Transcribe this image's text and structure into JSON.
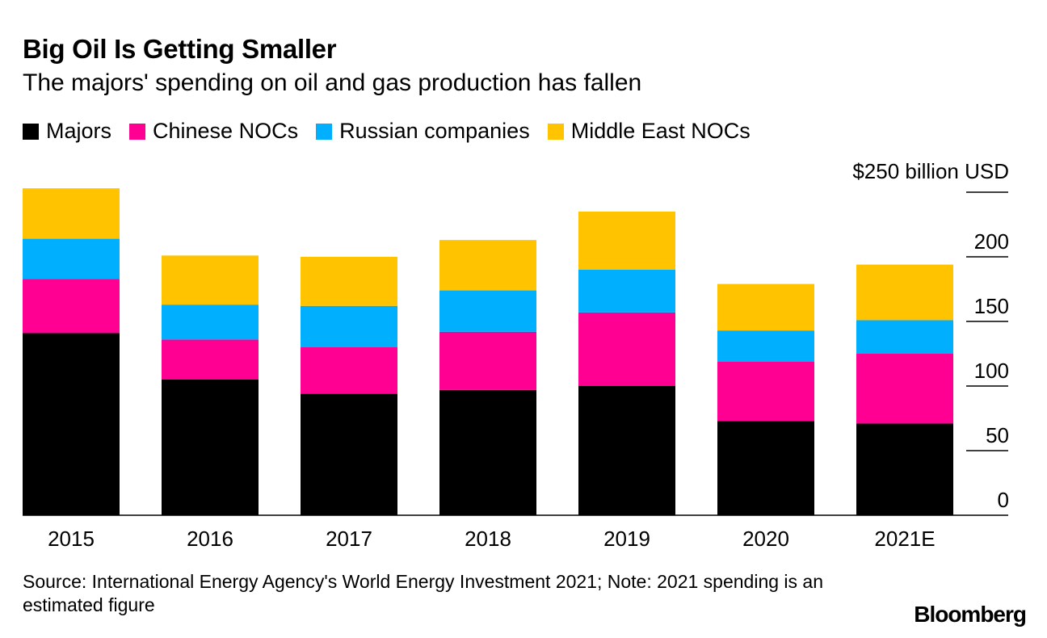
{
  "title": "Big Oil Is Getting Smaller",
  "subtitle": "The majors' spending on oil and gas production has fallen",
  "legend": [
    {
      "label": "Majors",
      "color": "#000000"
    },
    {
      "label": "Chinese NOCs",
      "color": "#ff0093"
    },
    {
      "label": "Russian companies",
      "color": "#00b0ff"
    },
    {
      "label": "Middle East NOCs",
      "color": "#ffc300"
    }
  ],
  "source": "Source: International Energy Agency's World Energy Investment 2021; Note: 2021 spending is an estimated figure",
  "logo": "Bloomberg",
  "chart_data": {
    "type": "bar",
    "stacked": true,
    "categories": [
      "2015",
      "2016",
      "2017",
      "2018",
      "2019",
      "2020",
      "2021E"
    ],
    "series": [
      {
        "name": "Majors",
        "color": "#000000",
        "values": [
          141,
          105,
          94,
          97,
          100,
          73,
          71
        ]
      },
      {
        "name": "Chinese NOCs",
        "color": "#ff0093",
        "values": [
          42,
          31,
          36,
          45,
          57,
          46,
          54
        ]
      },
      {
        "name": "Russian companies",
        "color": "#00b0ff",
        "values": [
          31,
          27,
          32,
          32,
          33,
          24,
          26
        ]
      },
      {
        "name": "Middle East NOCs",
        "color": "#ffc300",
        "values": [
          39,
          38,
          38,
          39,
          45,
          36,
          43
        ]
      }
    ],
    "y_unit_label": "$250 billion USD",
    "yticks": [
      0,
      50,
      100,
      150,
      200,
      250
    ],
    "ytick_labels": [
      "0",
      "50",
      "100",
      "150",
      "200",
      ""
    ],
    "ylim": [
      0,
      250
    ],
    "yaxis_position": "right",
    "legend_position": "top-left",
    "grid": false
  }
}
